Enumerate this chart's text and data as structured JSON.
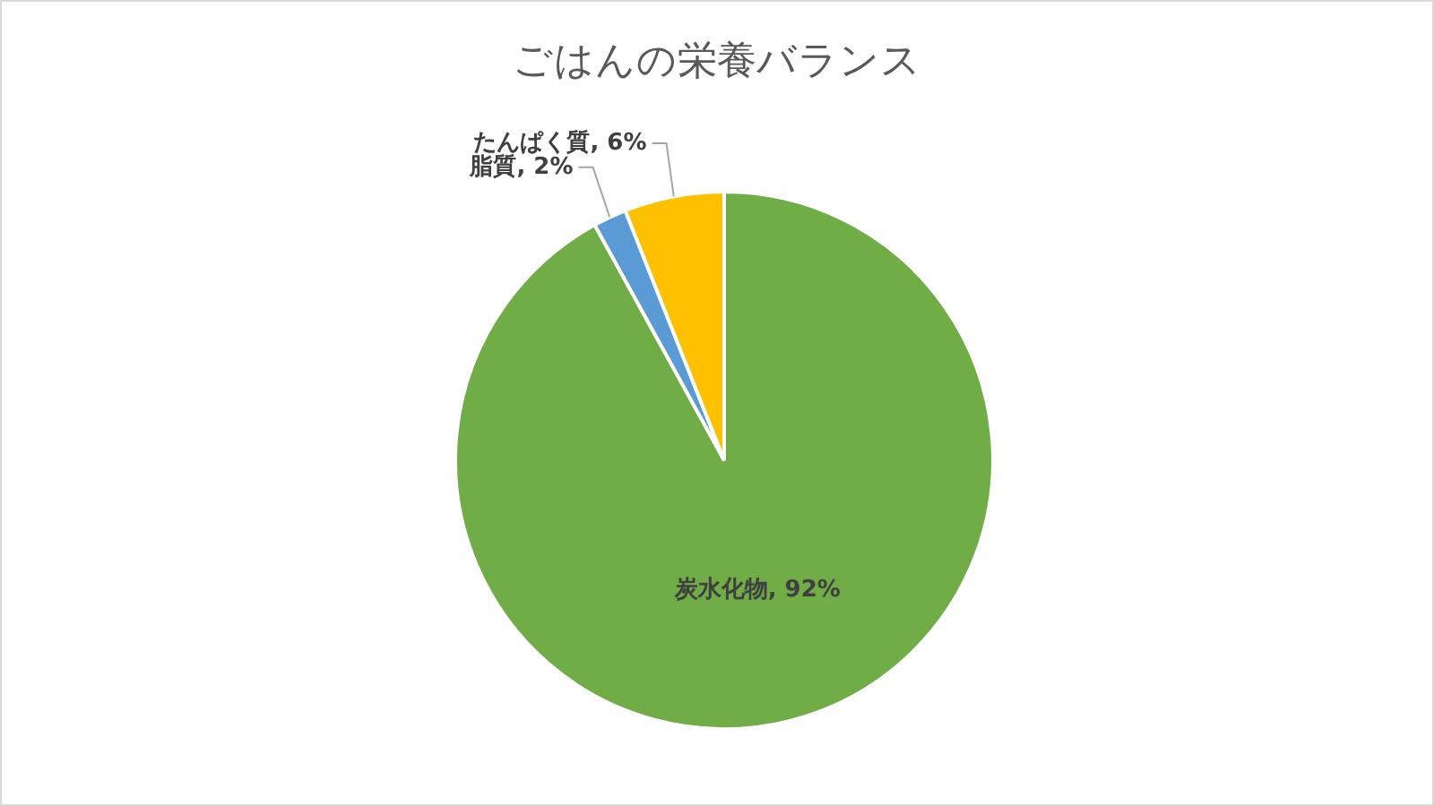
{
  "chart_data": {
    "type": "pie",
    "title": "ごはんの栄養バランス",
    "categories": [
      "炭水化物",
      "脂質",
      "たんぱく質"
    ],
    "values": [
      92,
      2,
      6
    ],
    "value_labels": [
      "92%",
      "2%",
      "6%"
    ],
    "colors": [
      "#70ad47",
      "#5b9bd5",
      "#ffc000"
    ],
    "legend": false
  }
}
